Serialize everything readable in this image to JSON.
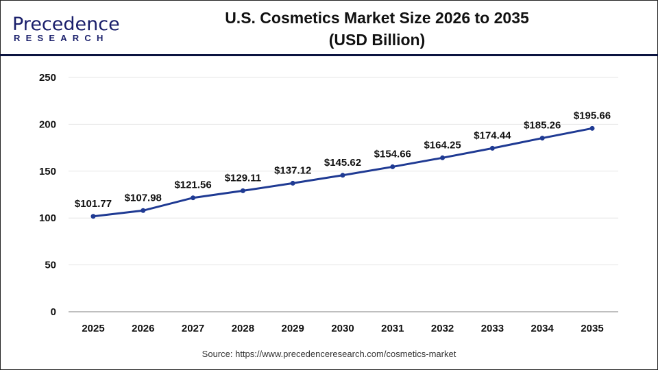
{
  "logo": {
    "line1": "Precedence",
    "line2": "RESEARCH"
  },
  "title_line1": "U.S. Cosmetics Market Size 2026 to 2035",
  "title_line2": "(USD Billion)",
  "source": "Source: https://www.precedenceresearch.com/cosmetics-market",
  "colors": {
    "line": "#1f3a93",
    "grid": "#e6e6e6",
    "axis": "#bfbfbf",
    "header_rule": "#0c1440"
  },
  "chart_data": {
    "type": "line",
    "title": "U.S. Cosmetics Market Size 2026 to 2035 (USD Billion)",
    "xlabel": "",
    "ylabel": "",
    "categories": [
      "2025",
      "2026",
      "2027",
      "2028",
      "2029",
      "2030",
      "2031",
      "2032",
      "2033",
      "2034",
      "2035"
    ],
    "values": [
      101.77,
      107.98,
      121.56,
      129.11,
      137.12,
      145.62,
      154.66,
      164.25,
      174.44,
      185.26,
      195.66
    ],
    "data_labels": [
      "$101.77",
      "$107.98",
      "$121.56",
      "$129.11",
      "$137.12",
      "$145.62",
      "$154.66",
      "$164.25",
      "$174.44",
      "$185.26",
      "$195.66"
    ],
    "ylim": [
      0,
      250
    ],
    "yticks": [
      0,
      50,
      100,
      150,
      200,
      250
    ],
    "grid": true,
    "legend": "none"
  }
}
